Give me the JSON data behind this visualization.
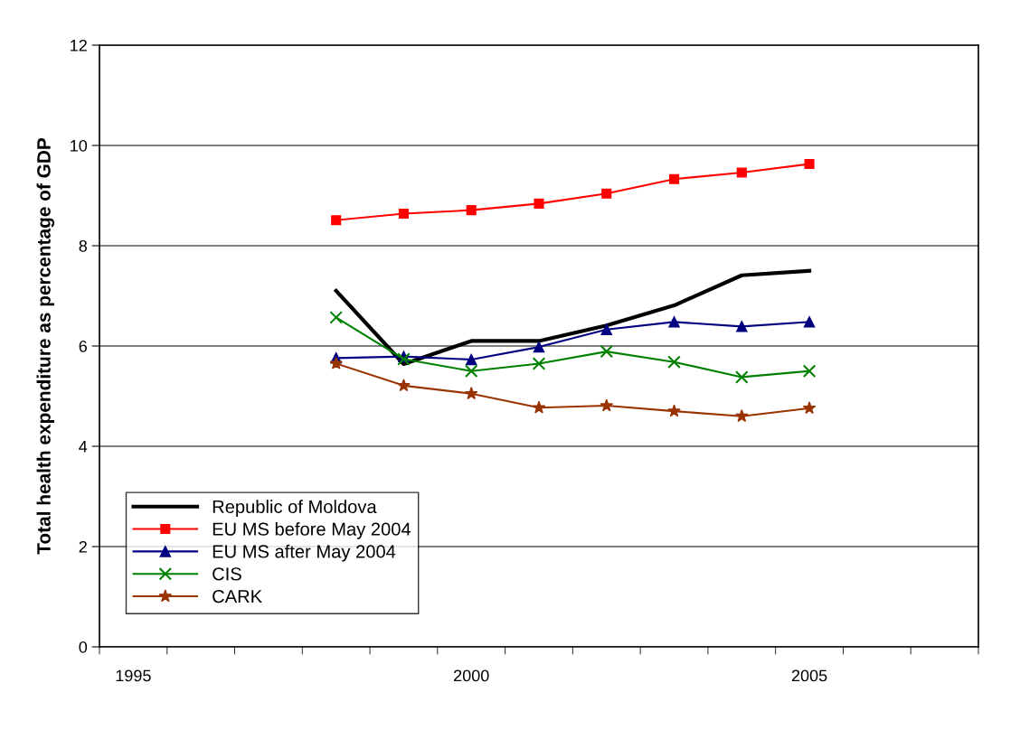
{
  "chart_data": {
    "type": "line",
    "ylabel": "Total health expenditure as percentage of GDP",
    "x": [
      1998,
      1999,
      2000,
      2001,
      2002,
      2003,
      2004,
      2005
    ],
    "xlim": [
      1994.5,
      2007.5
    ],
    "xticks": [
      {
        "value": 1994.5,
        "label": null
      },
      {
        "value": 1995,
        "label": "1995"
      },
      {
        "value": 1995.5,
        "label": null
      },
      {
        "value": 1996.5,
        "label": null
      },
      {
        "value": 1997.5,
        "label": null
      },
      {
        "value": 1998.5,
        "label": null
      },
      {
        "value": 1999.5,
        "label": null
      },
      {
        "value": 2000,
        "label": "2000"
      },
      {
        "value": 2000.5,
        "label": null
      },
      {
        "value": 2001.5,
        "label": null
      },
      {
        "value": 2002.5,
        "label": null
      },
      {
        "value": 2003.5,
        "label": null
      },
      {
        "value": 2004.5,
        "label": null
      },
      {
        "value": 2005,
        "label": "2005"
      },
      {
        "value": 2005.5,
        "label": null
      },
      {
        "value": 2006.5,
        "label": null
      },
      {
        "value": 2007.5,
        "label": null
      }
    ],
    "ylim": [
      0,
      12
    ],
    "yticks": [
      0,
      2,
      4,
      6,
      8,
      10,
      12
    ],
    "grid": "y",
    "legend": "bottom left",
    "series": [
      {
        "name": "Republic of Moldova",
        "color": "#000000",
        "marker": "none",
        "values": [
          7.1,
          5.64,
          6.1,
          6.1,
          6.41,
          6.81,
          7.41,
          7.5
        ]
      },
      {
        "name": "EU MS before May 2004",
        "color": "#ff0000",
        "marker": "square",
        "values": [
          8.51,
          8.64,
          8.71,
          8.84,
          9.04,
          9.33,
          9.46,
          9.63
        ]
      },
      {
        "name": "EU MS after May 2004",
        "color": "#000080",
        "marker": "triangle",
        "values": [
          5.76,
          5.79,
          5.73,
          5.98,
          6.33,
          6.48,
          6.39,
          6.48
        ]
      },
      {
        "name": "CIS",
        "color": "#008000",
        "marker": "cross",
        "values": [
          6.57,
          5.74,
          5.5,
          5.65,
          5.89,
          5.68,
          5.38,
          5.5
        ]
      },
      {
        "name": "CARK",
        "color": "#993300",
        "marker": "star",
        "values": [
          5.65,
          5.21,
          5.05,
          4.77,
          4.81,
          4.7,
          4.6,
          4.76
        ]
      }
    ]
  }
}
